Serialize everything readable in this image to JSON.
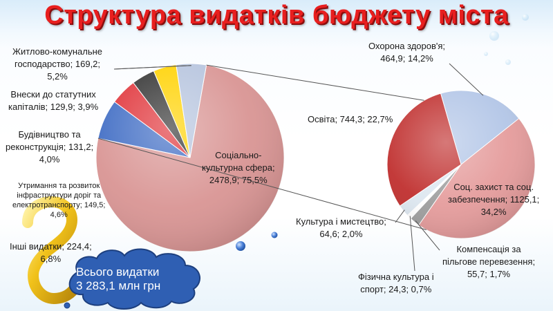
{
  "title": "Структура видатків бюджету міста",
  "total": {
    "line1": "Всього видатки",
    "line2": "3 283,1 млн грн"
  },
  "colors": {
    "social": "#d99594",
    "health": "#b3c6e7",
    "education": "#c0302f",
    "protection": "#e59c9c",
    "compensation": "#9e9e9e",
    "culture": "#dde7f0",
    "sport": "#ffffff",
    "housing": "#b6c4de",
    "statutory": "#ffd200",
    "construction": "#333333",
    "infrastructure": "#e0343a",
    "other": "#3f6cc4"
  },
  "chart_data": [
    {
      "type": "pie",
      "title": "",
      "slices": [
        {
          "key": "social",
          "label": "Соціально-культурна сфера",
          "value": 2478.9,
          "percent": 75.5,
          "text": [
            "Соціально-",
            "культурна сфера;",
            "2478,9; 75,5%"
          ]
        },
        {
          "key": "other",
          "label": "Інші видатки",
          "value": 224.4,
          "percent": 6.8,
          "text": [
            "Інші видатки; 224,4;",
            "6,8%"
          ]
        },
        {
          "key": "infrastructure",
          "label": "Утримання та розвиток інфраструктури доріг та електротранспорту",
          "value": 149.5,
          "percent": 4.6,
          "text": [
            "Утримання та розвиток",
            "інфраструктури доріг та",
            "електротранспорту;  149,5;",
            "4,6%"
          ]
        },
        {
          "key": "construction",
          "label": "Будівництво та реконструкція",
          "value": 131.2,
          "percent": 4.0,
          "text": [
            "Будівництво та",
            "реконструкція; 131,2;",
            "4,0%"
          ]
        },
        {
          "key": "statutory",
          "label": "Внески до статутних капіталів",
          "value": 129.9,
          "percent": 3.9,
          "text": [
            "Внески до статутних",
            "капіталів; 129,9; 3,9%"
          ]
        },
        {
          "key": "housing",
          "label": "Житлово-комунальне господарство",
          "value": 169.2,
          "percent": 5.2,
          "text": [
            "Житлово-комунальне",
            "господарство; 169,2;",
            "5,2%"
          ]
        }
      ]
    },
    {
      "type": "pie",
      "title": "",
      "slices": [
        {
          "key": "health",
          "label": "Охорона здоров'я",
          "value": 464.9,
          "percent": 14.2,
          "text": [
            "Охорона здоров'я;",
            "464,9; 14,2%"
          ]
        },
        {
          "key": "protection",
          "label": "Соц. захист та соц. забезпечення",
          "value": 1125.1,
          "percent": 34.2,
          "text": [
            "Соц. захист та соц.",
            "забезпечення; 1125,1;",
            "34,2%"
          ]
        },
        {
          "key": "compensation",
          "label": "Компенсація за пільгове перевезення",
          "value": 55.7,
          "percent": 1.7,
          "text": [
            "Компенсація за",
            "пільгове перевезення;",
            "55,7; 1,7%"
          ]
        },
        {
          "key": "sport",
          "label": "Фізична культура і спорт",
          "value": 24.3,
          "percent": 0.7,
          "text": [
            "Фізична культура і",
            "спорт; 24,3; 0,7%"
          ]
        },
        {
          "key": "culture",
          "label": "Культура і мистецтво",
          "value": 64.6,
          "percent": 2.0,
          "text": [
            "Культура і мистецтво;",
            "64,6; 2,0%"
          ]
        },
        {
          "key": "education",
          "label": "Освіта",
          "value": 744.3,
          "percent": 22.7,
          "text": [
            "Освіта; 744,3; 22,7%"
          ]
        }
      ]
    }
  ]
}
